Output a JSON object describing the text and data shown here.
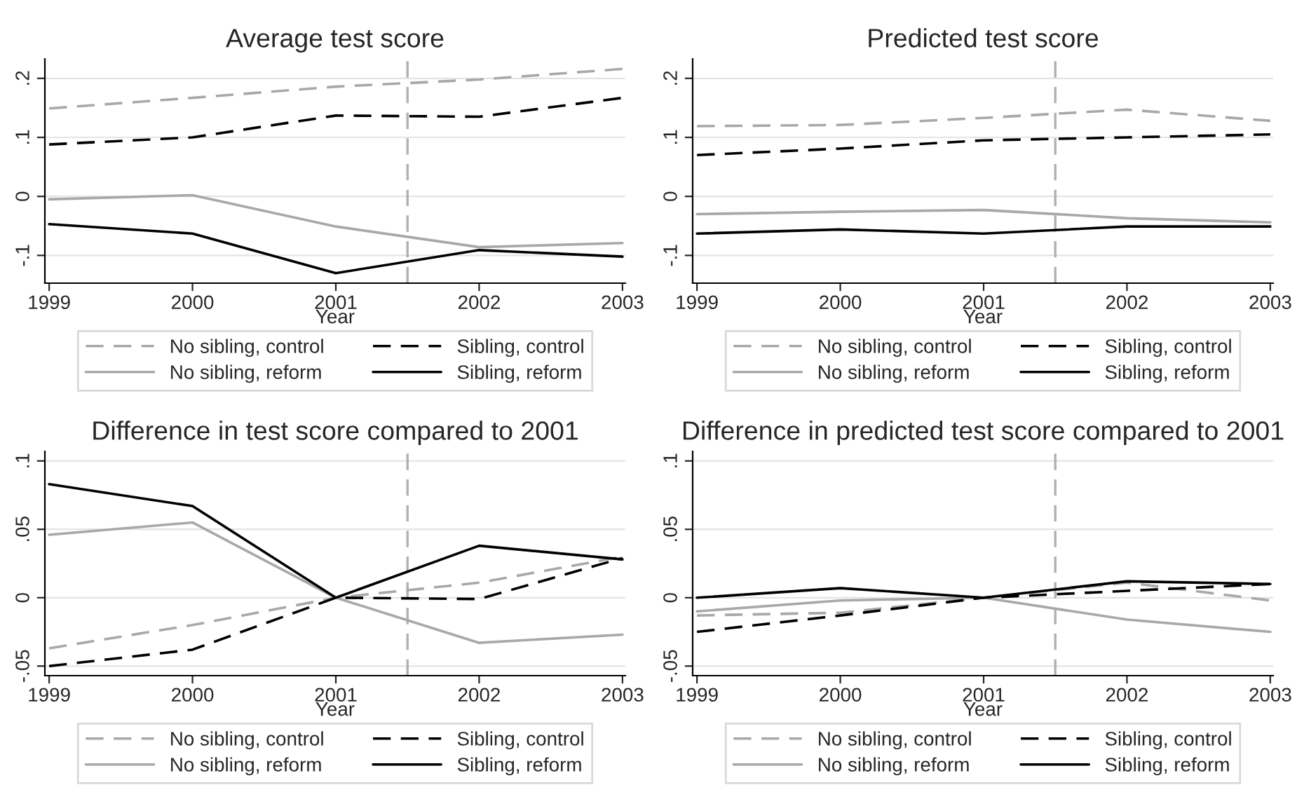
{
  "chart_data": [
    {
      "type": "line",
      "title": "Average test score",
      "xlabel": "Year",
      "x": [
        1999,
        2000,
        2001,
        2002,
        2003
      ],
      "xlim": [
        1998.97,
        2003.02
      ],
      "xticks": [
        1999,
        2000,
        2001,
        2002,
        2003
      ],
      "ylim": [
        -0.147,
        0.233
      ],
      "yticks": [
        {
          "value": -0.1,
          "label": "-.1"
        },
        0,
        {
          "value": 0.1,
          "label": ".1"
        },
        {
          "value": 0.2,
          "label": ".2"
        }
      ],
      "grid": "y",
      "legend": "bottom",
      "ref_lines": [
        {
          "axis": "x",
          "value": 2001.5,
          "color": "#b0b0b0",
          "line_style": "dashed"
        }
      ],
      "series": [
        {
          "name": "No sibling, control",
          "color": "#a8a8a8",
          "line_style": "dashed",
          "values": [
            0.149,
            0.167,
            0.186,
            0.198,
            0.216
          ]
        },
        {
          "name": "No sibling, reform",
          "color": "#a8a8a8",
          "line_style": "solid",
          "values": [
            -0.005,
            0.002,
            -0.051,
            -0.086,
            -0.079
          ]
        },
        {
          "name": "Sibling, control",
          "color": "#000000",
          "line_style": "dashed",
          "values": [
            0.088,
            0.1,
            0.137,
            0.135,
            0.167
          ]
        },
        {
          "name": "Sibling, reform",
          "color": "#000000",
          "line_style": "solid",
          "values": [
            -0.047,
            -0.063,
            -0.13,
            -0.091,
            -0.102
          ]
        }
      ]
    },
    {
      "type": "line",
      "title": "Predicted test score",
      "xlabel": "Year",
      "x": [
        1999,
        2000,
        2001,
        2002,
        2003
      ],
      "xlim": [
        1998.97,
        2003.02
      ],
      "xticks": [
        1999,
        2000,
        2001,
        2002,
        2003
      ],
      "ylim": [
        -0.147,
        0.233
      ],
      "yticks": [
        {
          "value": -0.1,
          "label": "-.1"
        },
        0,
        {
          "value": 0.1,
          "label": ".1"
        },
        {
          "value": 0.2,
          "label": ".2"
        }
      ],
      "grid": "y",
      "legend": "bottom",
      "ref_lines": [
        {
          "axis": "x",
          "value": 2001.5,
          "color": "#b0b0b0",
          "line_style": "dashed"
        }
      ],
      "series": [
        {
          "name": "No sibling, control",
          "color": "#a8a8a8",
          "line_style": "dashed",
          "values": [
            0.119,
            0.121,
            0.133,
            0.147,
            0.128
          ]
        },
        {
          "name": "No sibling, reform",
          "color": "#a8a8a8",
          "line_style": "solid",
          "values": [
            -0.03,
            -0.026,
            -0.023,
            -0.037,
            -0.044
          ]
        },
        {
          "name": "Sibling, control",
          "color": "#000000",
          "line_style": "dashed",
          "values": [
            0.07,
            0.081,
            0.095,
            0.1,
            0.105
          ]
        },
        {
          "name": "Sibling, reform",
          "color": "#000000",
          "line_style": "solid",
          "values": [
            -0.063,
            -0.056,
            -0.063,
            -0.051,
            -0.051
          ]
        }
      ]
    },
    {
      "type": "line",
      "title": "Difference in test score compared to 2001",
      "xlabel": "Year",
      "x": [
        1999,
        2000,
        2001,
        2002,
        2003
      ],
      "xlim": [
        1998.97,
        2003.02
      ],
      "xticks": [
        1999,
        2000,
        2001,
        2002,
        2003
      ],
      "ylim": [
        -0.057,
        0.107
      ],
      "yticks": [
        {
          "value": -0.05,
          "label": "-.05"
        },
        0,
        {
          "value": 0.05,
          "label": ".05"
        },
        {
          "value": 0.1,
          "label": ".1"
        }
      ],
      "grid": "y",
      "legend": "bottom",
      "ref_lines": [
        {
          "axis": "x",
          "value": 2001.5,
          "color": "#b0b0b0",
          "line_style": "dashed"
        }
      ],
      "series": [
        {
          "name": "No sibling, control",
          "color": "#a8a8a8",
          "line_style": "dashed",
          "values": [
            -0.037,
            -0.02,
            0,
            0.011,
            0.03
          ]
        },
        {
          "name": "No sibling, reform",
          "color": "#a8a8a8",
          "line_style": "solid",
          "values": [
            0.046,
            0.055,
            0,
            -0.033,
            -0.027
          ]
        },
        {
          "name": "Sibling, control",
          "color": "#000000",
          "line_style": "dashed",
          "values": [
            -0.05,
            -0.038,
            0,
            -0.001,
            0.029
          ]
        },
        {
          "name": "Sibling, reform",
          "color": "#000000",
          "line_style": "solid",
          "values": [
            0.083,
            0.067,
            0,
            0.038,
            0.028
          ]
        }
      ]
    },
    {
      "type": "line",
      "title": "Difference in predicted test score compared to 2001",
      "xlabel": "Year",
      "x": [
        1999,
        2000,
        2001,
        2002,
        2003
      ],
      "xlim": [
        1998.97,
        2003.02
      ],
      "xticks": [
        1999,
        2000,
        2001,
        2002,
        2003
      ],
      "ylim": [
        -0.057,
        0.107
      ],
      "yticks": [
        {
          "value": -0.05,
          "label": "-.05"
        },
        0,
        {
          "value": 0.05,
          "label": ".05"
        },
        {
          "value": 0.1,
          "label": ".1"
        }
      ],
      "grid": "y",
      "legend": "bottom",
      "ref_lines": [
        {
          "axis": "x",
          "value": 2001.5,
          "color": "#b0b0b0",
          "line_style": "dashed"
        }
      ],
      "series": [
        {
          "name": "No sibling, control",
          "color": "#a8a8a8",
          "line_style": "dashed",
          "values": [
            -0.013,
            -0.011,
            0,
            0.011,
            -0.002
          ]
        },
        {
          "name": "No sibling, reform",
          "color": "#a8a8a8",
          "line_style": "solid",
          "values": [
            -0.01,
            -0.002,
            0,
            -0.016,
            -0.025
          ]
        },
        {
          "name": "Sibling, control",
          "color": "#000000",
          "line_style": "dashed",
          "values": [
            -0.025,
            -0.013,
            0,
            0.005,
            0.01
          ]
        },
        {
          "name": "Sibling, reform",
          "color": "#000000",
          "line_style": "solid",
          "values": [
            0,
            0.007,
            0,
            0.012,
            0.01
          ]
        }
      ]
    }
  ]
}
